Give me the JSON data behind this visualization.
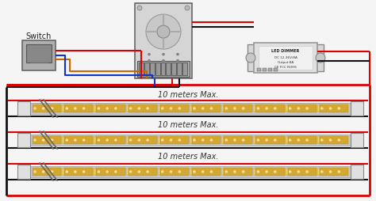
{
  "bg_color": "#f5f5f5",
  "wire_red": "#dd0000",
  "wire_black": "#111111",
  "wire_blue": "#1133cc",
  "wire_orange": "#cc6600",
  "strip_gold": "#d4a830",
  "strip_silver": "#b0b0b0",
  "strip_pcb": "#c8c8c8",
  "switch_label": "Switch",
  "dimmer_label": "LED DIMMER",
  "row_labels": [
    "10 meters Max.",
    "10 meters Max.",
    "10 meters Max."
  ]
}
